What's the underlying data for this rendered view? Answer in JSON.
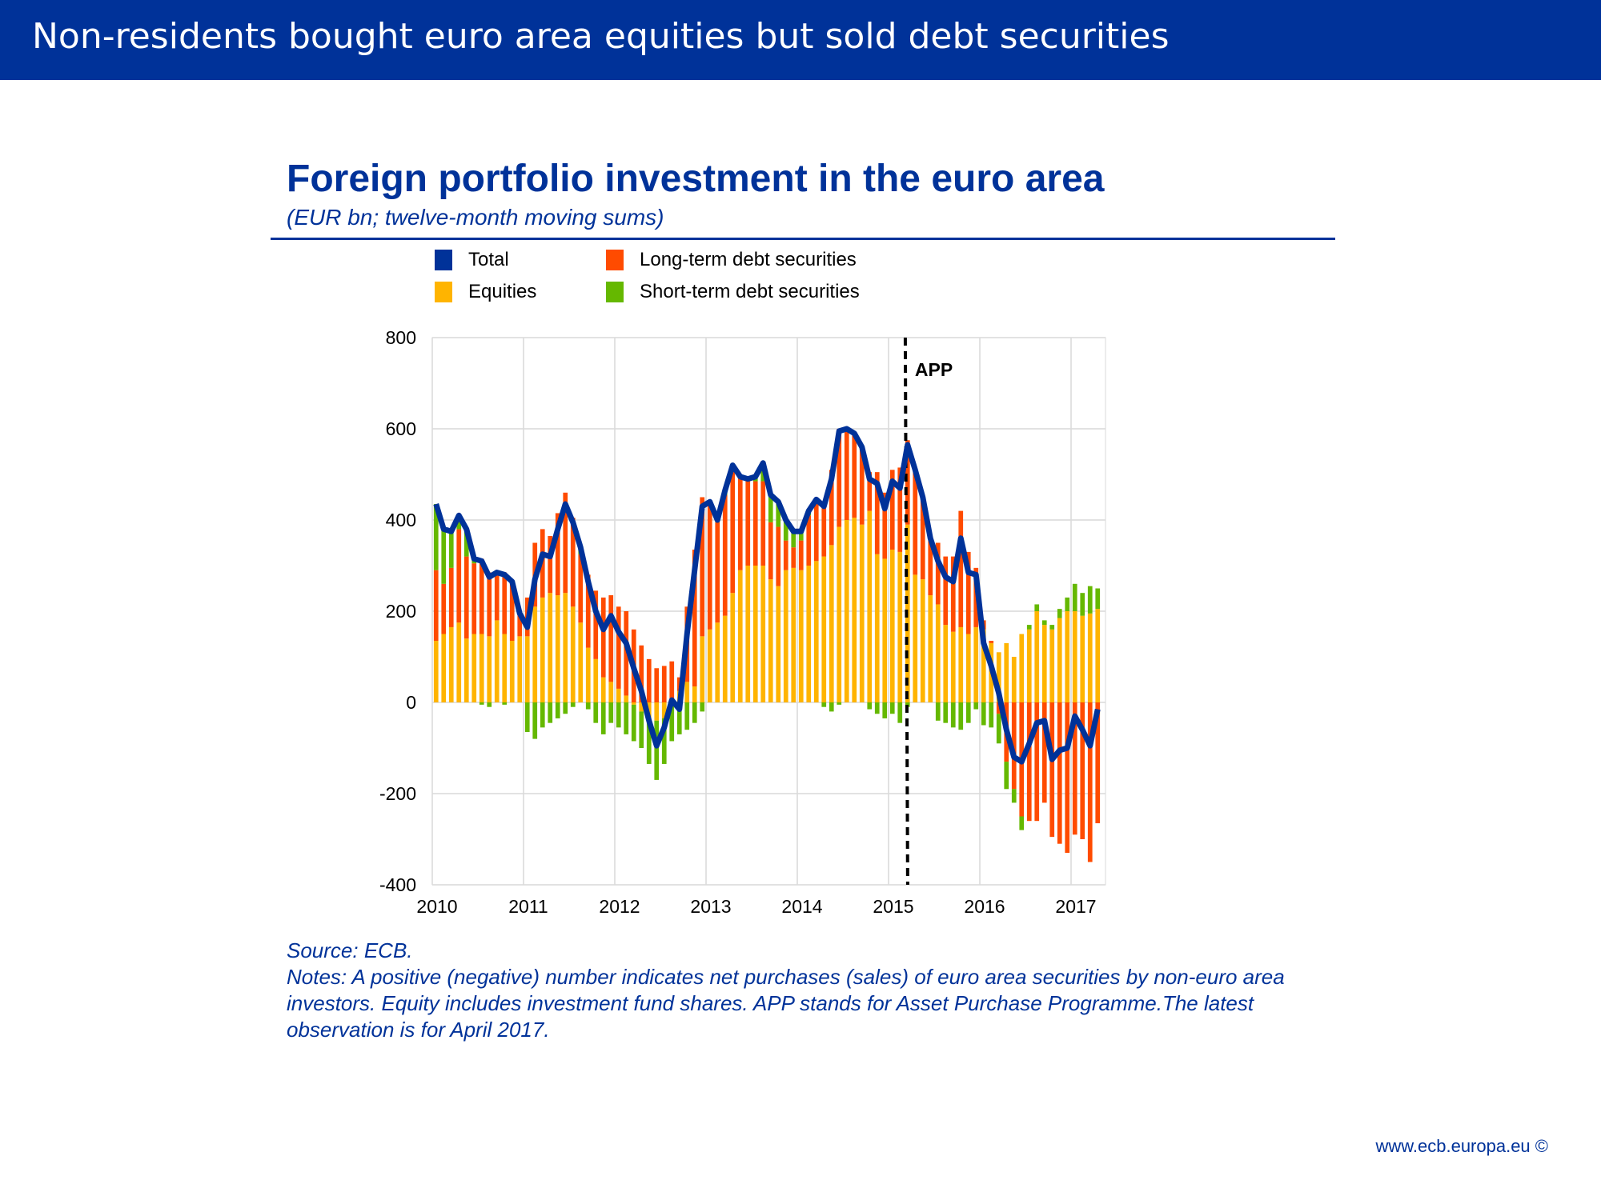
{
  "header": {
    "title": "Non-residents bought euro area equities but sold debt securities"
  },
  "chart_data": {
    "type": "bar",
    "title": "Foreign portfolio investment in the euro area",
    "subtitle": "(EUR bn; twelve-month moving sums)",
    "x_start": "2010-01",
    "x_end": "2017-04",
    "frequency": "monthly",
    "x_ticks": [
      "2010",
      "2011",
      "2012",
      "2013",
      "2014",
      "2015",
      "2016",
      "2017"
    ],
    "y_ticks": [
      "800",
      "600",
      "400",
      "200",
      "0",
      "-200",
      "-400"
    ],
    "ylim": [
      -400,
      800
    ],
    "grid": true,
    "legend_placement": "top",
    "annotation": {
      "label": "APP",
      "date": "2015-03"
    },
    "colors": {
      "Total": "#003299",
      "Equities": "#ffb400",
      "Long-term debt securities": "#ff4b00",
      "Short-term debt securities": "#65b800"
    },
    "series": [
      {
        "name": "Total",
        "type": "line",
        "values": [
          435,
          380,
          375,
          410,
          380,
          315,
          310,
          275,
          285,
          280,
          265,
          195,
          165,
          270,
          325,
          320,
          380,
          435,
          395,
          340,
          265,
          200,
          160,
          190,
          155,
          130,
          75,
          25,
          -40,
          -95,
          -55,
          5,
          -15,
          150,
          290,
          430,
          440,
          400,
          465,
          520,
          495,
          490,
          495,
          525,
          455,
          440,
          400,
          375,
          375,
          420,
          445,
          430,
          490,
          595,
          600,
          590,
          560,
          490,
          480,
          425,
          485,
          470,
          565,
          510,
          450,
          360,
          310,
          275,
          265,
          360,
          285,
          280,
          130,
          80,
          20,
          -60,
          -120,
          -130,
          -90,
          -45,
          -40,
          -125,
          -105,
          -100,
          -30,
          -60,
          -95,
          -15
        ]
      },
      {
        "name": "Equities",
        "type": "bar",
        "values": [
          135,
          150,
          165,
          175,
          140,
          150,
          150,
          145,
          180,
          150,
          135,
          145,
          145,
          210,
          230,
          240,
          235,
          240,
          210,
          175,
          120,
          95,
          55,
          45,
          30,
          15,
          -5,
          -20,
          -35,
          -40,
          -35,
          5,
          25,
          45,
          35,
          145,
          160,
          175,
          190,
          240,
          290,
          300,
          300,
          300,
          270,
          255,
          290,
          295,
          290,
          300,
          310,
          320,
          345,
          385,
          400,
          405,
          390,
          420,
          325,
          315,
          335,
          330,
          390,
          280,
          270,
          235,
          215,
          170,
          155,
          165,
          150,
          165,
          160,
          130,
          110,
          130,
          100,
          150,
          160,
          200,
          170,
          160,
          185,
          200,
          200,
          190,
          195,
          205
        ]
      },
      {
        "name": "Long-term debt securities",
        "type": "bar",
        "values": [
          155,
          110,
          130,
          205,
          180,
          155,
          165,
          140,
          105,
          135,
          130,
          50,
          85,
          140,
          150,
          125,
          180,
          220,
          195,
          150,
          160,
          150,
          175,
          190,
          180,
          185,
          160,
          125,
          95,
          75,
          80,
          85,
          30,
          165,
          300,
          305,
          280,
          220,
          265,
          270,
          205,
          185,
          185,
          185,
          125,
          130,
          65,
          45,
          65,
          110,
          135,
          120,
          165,
          215,
          200,
          185,
          170,
          85,
          180,
          145,
          175,
          185,
          185,
          230,
          180,
          120,
          135,
          150,
          165,
          255,
          180,
          130,
          20,
          5,
          -25,
          -130,
          -190,
          -250,
          -260,
          -260,
          -220,
          -295,
          -310,
          -330,
          -290,
          -300,
          -350,
          -265
        ]
      },
      {
        "name": "Short-term debt securities",
        "type": "bar",
        "values": [
          145,
          120,
          80,
          30,
          60,
          10,
          -5,
          -10,
          0,
          -5,
          0,
          0,
          -65,
          -80,
          -55,
          -45,
          -35,
          -25,
          -10,
          15,
          -15,
          -45,
          -70,
          -45,
          -55,
          -70,
          -80,
          -80,
          -100,
          -130,
          -100,
          -85,
          -70,
          -60,
          -45,
          -20,
          0,
          5,
          10,
          10,
          0,
          5,
          10,
          40,
          60,
          55,
          45,
          35,
          20,
          10,
          0,
          -10,
          -20,
          -5,
          0,
          0,
          0,
          -15,
          -25,
          -35,
          -25,
          -45,
          -10,
          0,
          0,
          5,
          -40,
          -45,
          -55,
          -60,
          -45,
          -15,
          -50,
          -55,
          -65,
          -60,
          -30,
          -30,
          10,
          15,
          10,
          10,
          20,
          30,
          60,
          50,
          60,
          45
        ]
      }
    ]
  },
  "notes": {
    "source": "Source: ECB.",
    "text": "Notes: A positive (negative) number indicates net purchases (sales) of euro area securities by non-euro area investors. Equity includes investment fund shares. APP stands for Asset Purchase Programme.The latest observation is for April 2017."
  },
  "footer": "www.ecb.europa.eu ©"
}
